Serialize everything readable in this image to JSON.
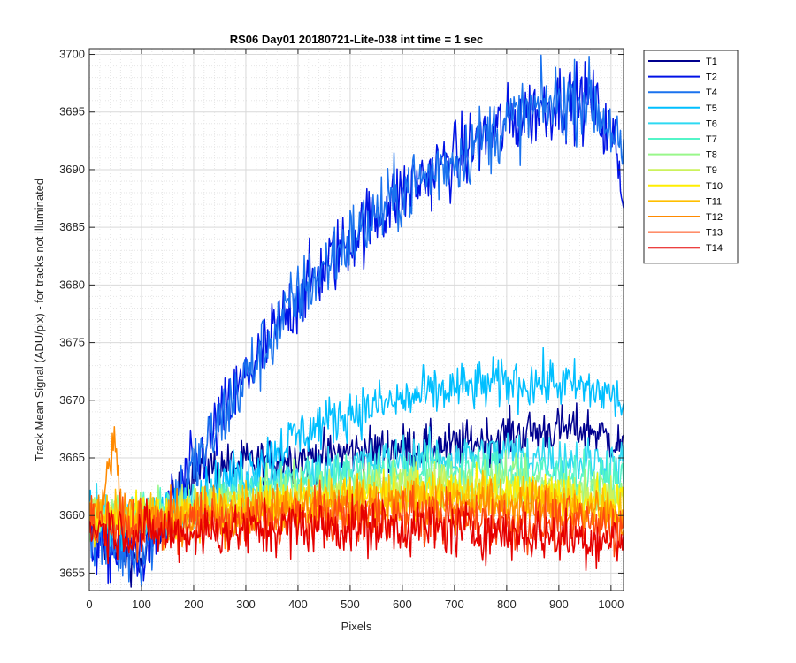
{
  "chart_data": {
    "type": "line",
    "title": "RS06 Day01 20180721-Lite-038 int time = 1 sec",
    "xlabel": "Pixels",
    "ylabel": "Track Mean Signal (ADU/pix) - for tracks not illuminated",
    "xlim": [
      0,
      1024
    ],
    "ylim": [
      3653.5,
      3700.5
    ],
    "xticks": [
      0,
      100,
      200,
      300,
      400,
      500,
      600,
      700,
      800,
      900,
      1000
    ],
    "yticks": [
      3655,
      3660,
      3665,
      3670,
      3675,
      3680,
      3685,
      3690,
      3695,
      3700
    ],
    "grid": true,
    "minor_grid": true,
    "legend_position": "outside-top-right",
    "series": [
      {
        "name": "T1",
        "color": "#00008F",
        "noise": 1.0,
        "x": [
          0,
          50,
          100,
          150,
          200,
          300,
          400,
          500,
          600,
          700,
          800,
          900,
          960,
          1024
        ],
        "y": [
          3659,
          3657,
          3656,
          3660,
          3664,
          3664.5,
          3665,
          3665.5,
          3666,
          3666,
          3667,
          3667.5,
          3667.5,
          3666
        ]
      },
      {
        "name": "T2",
        "color": "#0012E6",
        "noise": 1.6,
        "x": [
          0,
          50,
          100,
          150,
          200,
          300,
          400,
          500,
          600,
          700,
          800,
          900,
          960,
          1010,
          1024
        ],
        "y": [
          3658,
          3657,
          3657,
          3660,
          3664,
          3672,
          3679,
          3684,
          3688,
          3691,
          3694,
          3696,
          3696,
          3692,
          3688
        ]
      },
      {
        "name": "T4",
        "color": "#1A72EE",
        "noise": 1.6,
        "x": [
          0,
          50,
          100,
          150,
          200,
          300,
          400,
          500,
          600,
          700,
          800,
          900,
          960,
          1010,
          1024
        ],
        "y": [
          3659,
          3657,
          3657,
          3660,
          3664,
          3672,
          3679,
          3684,
          3688,
          3691,
          3694,
          3696,
          3696,
          3693,
          3690
        ]
      },
      {
        "name": "T5",
        "color": "#00BFFF",
        "noise": 1.1,
        "x": [
          0,
          100,
          200,
          300,
          400,
          500,
          600,
          700,
          800,
          900,
          1000,
          1024
        ],
        "y": [
          3660,
          3659,
          3661.5,
          3664,
          3667,
          3669,
          3670,
          3671,
          3671.5,
          3671.5,
          3670.5,
          3669.5
        ]
      },
      {
        "name": "T6",
        "color": "#2ED9F2",
        "noise": 1.0,
        "x": [
          0,
          100,
          200,
          300,
          400,
          500,
          600,
          700,
          800,
          900,
          1024
        ],
        "y": [
          3660,
          3660,
          3661,
          3662.5,
          3663.5,
          3664.5,
          3665,
          3665,
          3665.5,
          3665,
          3664.5
        ]
      },
      {
        "name": "T7",
        "color": "#53F5C8",
        "noise": 1.0,
        "x": [
          0,
          100,
          200,
          300,
          400,
          500,
          600,
          700,
          800,
          900,
          1024
        ],
        "y": [
          3660,
          3660,
          3660.8,
          3662,
          3663,
          3663.5,
          3663.8,
          3664,
          3664,
          3663.5,
          3663
        ]
      },
      {
        "name": "T8",
        "color": "#99F78A",
        "noise": 1.0,
        "x": [
          0,
          100,
          200,
          300,
          400,
          500,
          600,
          700,
          800,
          900,
          1024
        ],
        "y": [
          3660,
          3660,
          3660.5,
          3661.5,
          3662,
          3662.5,
          3662.8,
          3663,
          3663,
          3662.5,
          3662
        ]
      },
      {
        "name": "T9",
        "color": "#CCF25C",
        "noise": 1.0,
        "x": [
          0,
          100,
          200,
          300,
          400,
          500,
          600,
          700,
          800,
          900,
          1024
        ],
        "y": [
          3660,
          3660,
          3660.5,
          3661,
          3661.5,
          3662,
          3662.3,
          3662.5,
          3662.3,
          3662,
          3661.5
        ]
      },
      {
        "name": "T10",
        "color": "#FFEE00",
        "noise": 1.0,
        "x": [
          0,
          100,
          200,
          300,
          400,
          500,
          600,
          700,
          800,
          900,
          1024
        ],
        "y": [
          3660,
          3660,
          3660.3,
          3660.8,
          3661.2,
          3661.6,
          3661.8,
          3662,
          3661.8,
          3661.5,
          3661
        ]
      },
      {
        "name": "T11",
        "color": "#FFBF00",
        "noise": 1.1,
        "x": [
          0,
          100,
          200,
          300,
          400,
          500,
          600,
          700,
          800,
          900,
          1024
        ],
        "y": [
          3660,
          3659.5,
          3660,
          3660.5,
          3661,
          3661.3,
          3661.5,
          3661.5,
          3661.3,
          3661,
          3660.5
        ]
      },
      {
        "name": "T12",
        "color": "#FF8A00",
        "noise": 1.1,
        "x": [
          0,
          30,
          45,
          60,
          100,
          200,
          300,
          400,
          500,
          600,
          700,
          800,
          900,
          1024
        ],
        "y": [
          3660,
          3661.5,
          3667,
          3661.5,
          3659.5,
          3659.8,
          3660.2,
          3660.5,
          3660.8,
          3661,
          3661,
          3660.8,
          3660.5,
          3660
        ]
      },
      {
        "name": "T13",
        "color": "#FF4A10",
        "noise": 1.2,
        "x": [
          0,
          100,
          200,
          300,
          400,
          500,
          600,
          700,
          800,
          900,
          1024
        ],
        "y": [
          3659.5,
          3659,
          3659.3,
          3659.5,
          3659.8,
          3660,
          3660,
          3659.8,
          3659.5,
          3659.3,
          3659
        ]
      },
      {
        "name": "T14",
        "color": "#E60000",
        "noise": 1.2,
        "x": [
          0,
          100,
          200,
          300,
          400,
          500,
          600,
          700,
          800,
          900,
          1024
        ],
        "y": [
          3659,
          3658.5,
          3658.5,
          3658.8,
          3659,
          3659,
          3659,
          3658.8,
          3658.5,
          3658.2,
          3657.8
        ]
      }
    ]
  }
}
